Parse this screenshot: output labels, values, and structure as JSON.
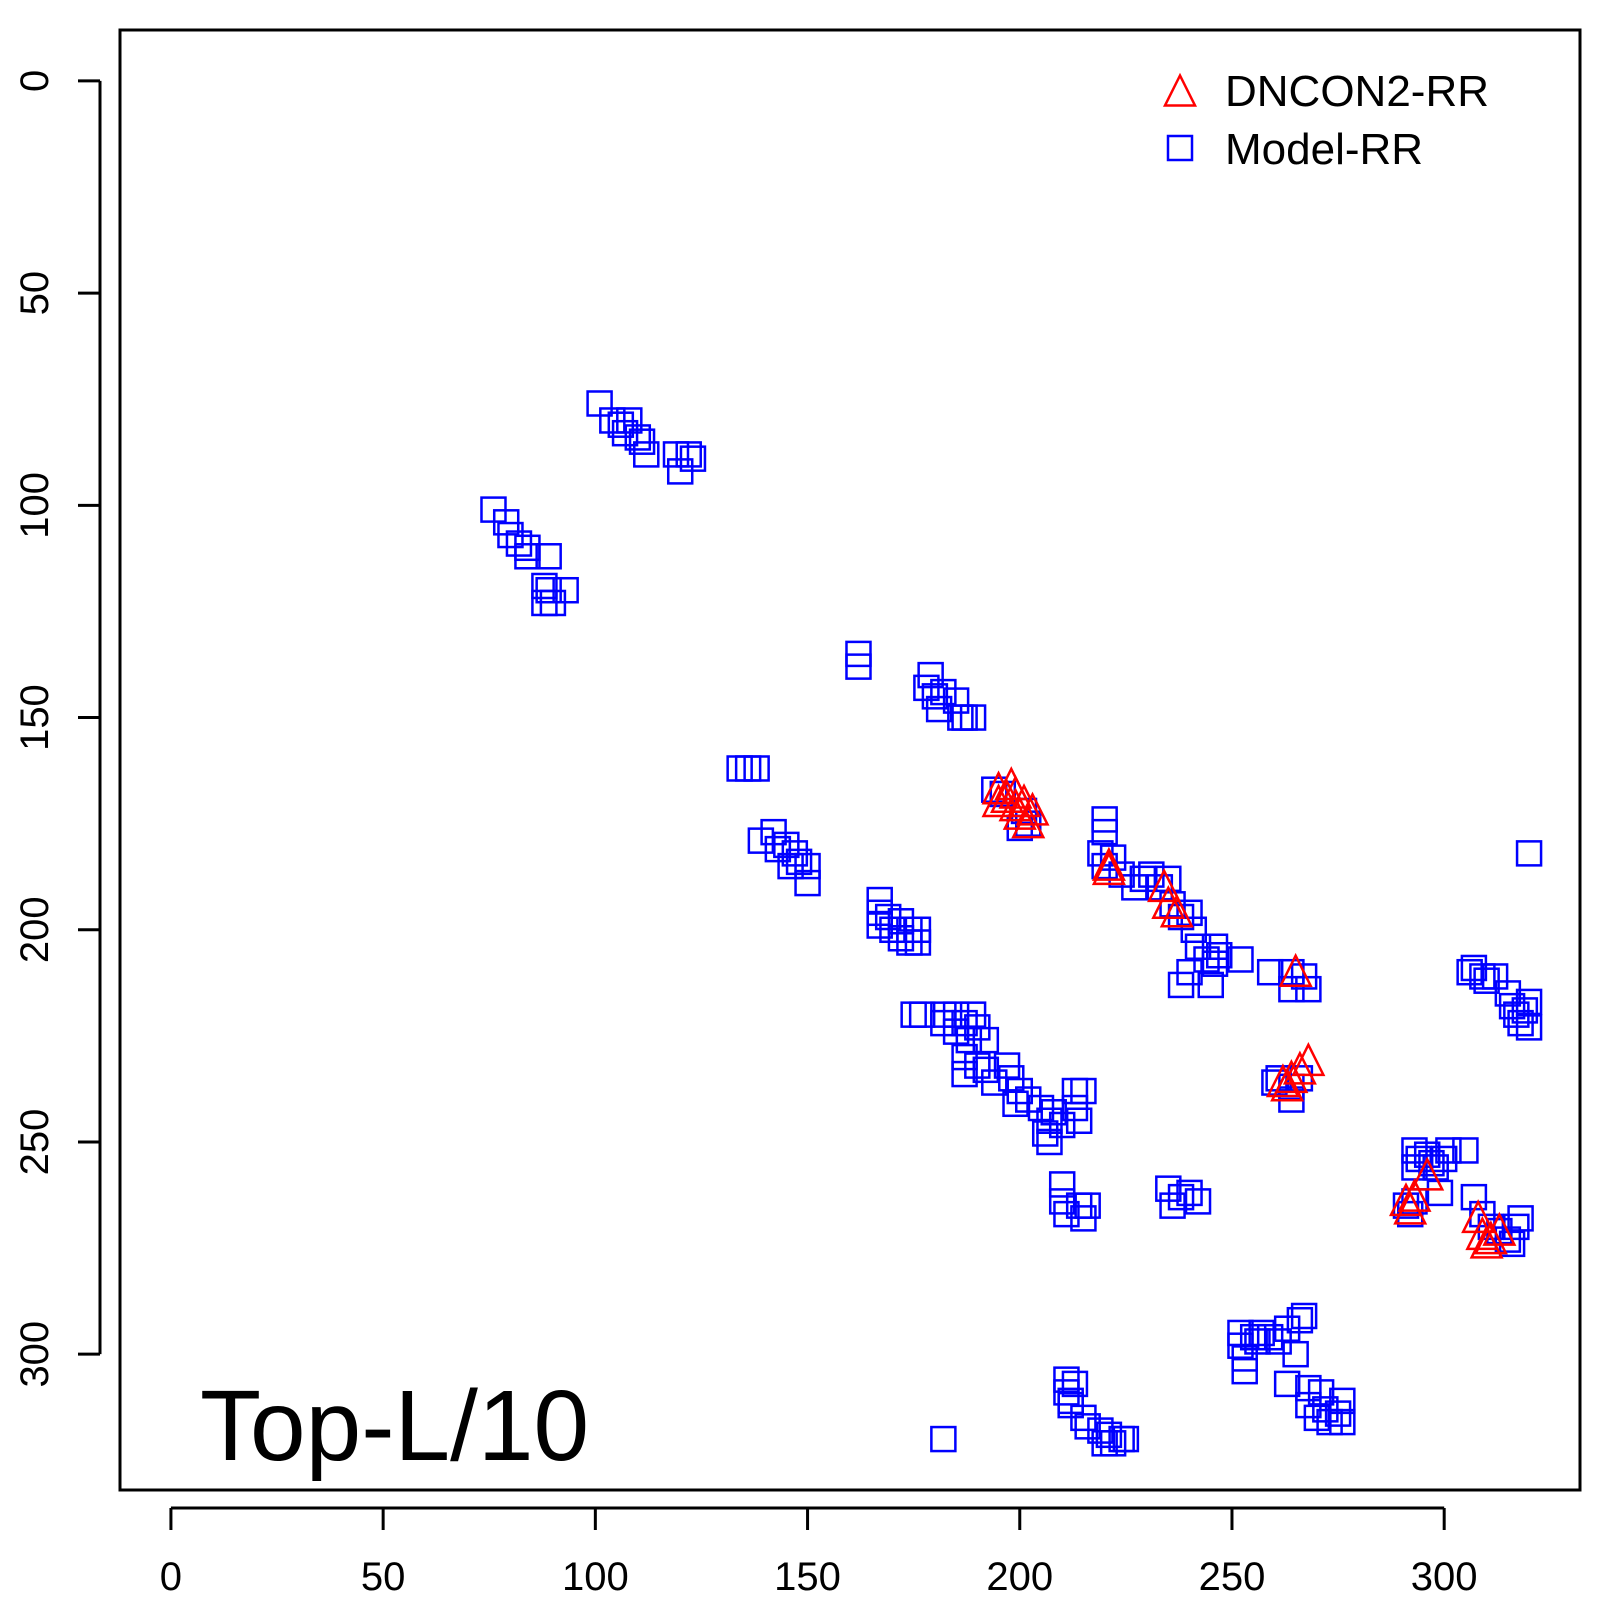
{
  "chart_data": {
    "type": "scatter",
    "annotation": "Top-L/10",
    "xlim": [
      -12,
      332
    ],
    "ylim": [
      -12,
      332
    ],
    "y_axis_reversed": true,
    "x_ticks": [
      0,
      50,
      100,
      150,
      200,
      250,
      300
    ],
    "y_ticks": [
      0,
      50,
      100,
      150,
      200,
      250,
      300
    ],
    "legend": {
      "placement": "top-right"
    },
    "series": [
      {
        "name": "DNCON2-RR",
        "marker": "triangle",
        "color": "#ff0000",
        "points": [
          [
            195,
            167
          ],
          [
            197,
            169
          ],
          [
            198,
            166
          ],
          [
            199,
            171
          ],
          [
            200,
            173
          ],
          [
            201,
            170
          ],
          [
            203,
            172
          ],
          [
            195,
            170
          ],
          [
            199,
            168
          ],
          [
            202,
            175
          ],
          [
            221,
            185
          ],
          [
            221,
            186
          ],
          [
            234,
            190
          ],
          [
            235,
            194
          ],
          [
            237,
            196
          ],
          [
            265,
            210
          ],
          [
            262,
            236
          ],
          [
            264,
            235
          ],
          [
            266,
            233
          ],
          [
            268,
            231
          ],
          [
            263,
            237
          ],
          [
            292,
            266
          ],
          [
            293,
            263
          ],
          [
            296,
            258
          ],
          [
            291,
            264
          ],
          [
            308,
            268
          ],
          [
            309,
            272
          ],
          [
            311,
            273
          ],
          [
            313,
            271
          ],
          [
            310,
            274
          ]
        ]
      },
      {
        "name": "Model-RR",
        "marker": "square",
        "color": "#0000ff",
        "points": [
          [
            101,
            76
          ],
          [
            104,
            80
          ],
          [
            106,
            81
          ],
          [
            108,
            80
          ],
          [
            107,
            83
          ],
          [
            110,
            84
          ],
          [
            111,
            85
          ],
          [
            112,
            88
          ],
          [
            119,
            88
          ],
          [
            120,
            92
          ],
          [
            123,
            89
          ],
          [
            122,
            88
          ],
          [
            76,
            101
          ],
          [
            79,
            104
          ],
          [
            80,
            107
          ],
          [
            82,
            109
          ],
          [
            84,
            110
          ],
          [
            84,
            112
          ],
          [
            89,
            112
          ],
          [
            88,
            119
          ],
          [
            88,
            123
          ],
          [
            90,
            123
          ],
          [
            93,
            120
          ],
          [
            89,
            120
          ],
          [
            162,
            135
          ],
          [
            162,
            138
          ],
          [
            179,
            140
          ],
          [
            178,
            143
          ],
          [
            180,
            145
          ],
          [
            181,
            148
          ],
          [
            182,
            144
          ],
          [
            185,
            146
          ],
          [
            186,
            150
          ],
          [
            187,
            150
          ],
          [
            189,
            150
          ],
          [
            134,
            162
          ],
          [
            136,
            162
          ],
          [
            138,
            162
          ],
          [
            139,
            179
          ],
          [
            142,
            177
          ],
          [
            143,
            181
          ],
          [
            145,
            180
          ],
          [
            147,
            182
          ],
          [
            146,
            185
          ],
          [
            148,
            184
          ],
          [
            150,
            185
          ],
          [
            150,
            189
          ],
          [
            167,
            193
          ],
          [
            167,
            196
          ],
          [
            167,
            199
          ],
          [
            169,
            197
          ],
          [
            170,
            200
          ],
          [
            172,
            198
          ],
          [
            172,
            202
          ],
          [
            174,
            200
          ],
          [
            174,
            203
          ],
          [
            176,
            200
          ],
          [
            176,
            203
          ],
          [
            175,
            220
          ],
          [
            177,
            220
          ],
          [
            182,
            220
          ],
          [
            182,
            222
          ],
          [
            185,
            220
          ],
          [
            185,
            224
          ],
          [
            187,
            222
          ],
          [
            188,
            226
          ],
          [
            189,
            220
          ],
          [
            190,
            223
          ],
          [
            187,
            230
          ],
          [
            187,
            234
          ],
          [
            190,
            232
          ],
          [
            192,
            226
          ],
          [
            192,
            233
          ],
          [
            194,
            236
          ],
          [
            197,
            232
          ],
          [
            198,
            235
          ],
          [
            200,
            238
          ],
          [
            199,
            241
          ],
          [
            202,
            240
          ],
          [
            205,
            242
          ],
          [
            207,
            245
          ],
          [
            206,
            248
          ],
          [
            208,
            243
          ],
          [
            210,
            246
          ],
          [
            213,
            242
          ],
          [
            214,
            245
          ],
          [
            213,
            238
          ],
          [
            215,
            238
          ],
          [
            207,
            250
          ],
          [
            194,
            167
          ],
          [
            196,
            168
          ],
          [
            201,
            172
          ],
          [
            202,
            175
          ],
          [
            200,
            176
          ],
          [
            220,
            174
          ],
          [
            220,
            177
          ],
          [
            219,
            182
          ],
          [
            220,
            185
          ],
          [
            222,
            183
          ],
          [
            224,
            187
          ],
          [
            227,
            190
          ],
          [
            229,
            188
          ],
          [
            231,
            187
          ],
          [
            233,
            190
          ],
          [
            235,
            188
          ],
          [
            236,
            194
          ],
          [
            238,
            197
          ],
          [
            240,
            196
          ],
          [
            241,
            200
          ],
          [
            242,
            204
          ],
          [
            244,
            207
          ],
          [
            246,
            204
          ],
          [
            246,
            208
          ],
          [
            247,
            206
          ],
          [
            252,
            207
          ],
          [
            238,
            213
          ],
          [
            240,
            210
          ],
          [
            245,
            213
          ],
          [
            259,
            210
          ],
          [
            264,
            210
          ],
          [
            264,
            214
          ],
          [
            267,
            211
          ],
          [
            268,
            214
          ],
          [
            260,
            236
          ],
          [
            261,
            235
          ],
          [
            264,
            237
          ],
          [
            264,
            240
          ],
          [
            266,
            235
          ],
          [
            210,
            260
          ],
          [
            210,
            264
          ],
          [
            211,
            267
          ],
          [
            214,
            265
          ],
          [
            215,
            268
          ],
          [
            216,
            265
          ],
          [
            235,
            261
          ],
          [
            236,
            265
          ],
          [
            238,
            263
          ],
          [
            240,
            262
          ],
          [
            242,
            264
          ],
          [
            306,
            210
          ],
          [
            307,
            209
          ],
          [
            309,
            211
          ],
          [
            310,
            212
          ],
          [
            312,
            211
          ],
          [
            315,
            215
          ],
          [
            316,
            218
          ],
          [
            317,
            220
          ],
          [
            318,
            222
          ],
          [
            319,
            219
          ],
          [
            320,
            223
          ],
          [
            320,
            217
          ],
          [
            320,
            182
          ],
          [
            293,
            252
          ],
          [
            293,
            256
          ],
          [
            294,
            254
          ],
          [
            296,
            253
          ],
          [
            297,
            255
          ],
          [
            298,
            256
          ],
          [
            300,
            254
          ],
          [
            301,
            252
          ],
          [
            305,
            252
          ],
          [
            299,
            262
          ],
          [
            291,
            265
          ],
          [
            292,
            267
          ],
          [
            293,
            264
          ],
          [
            307,
            263
          ],
          [
            309,
            267
          ],
          [
            311,
            270
          ],
          [
            313,
            271
          ],
          [
            315,
            273
          ],
          [
            316,
            274
          ],
          [
            317,
            270
          ],
          [
            318,
            268
          ],
          [
            252,
            295
          ],
          [
            252,
            298
          ],
          [
            253,
            301
          ],
          [
            253,
            304
          ],
          [
            255,
            296
          ],
          [
            256,
            297
          ],
          [
            257,
            295
          ],
          [
            259,
            296
          ],
          [
            261,
            297
          ],
          [
            263,
            294
          ],
          [
            266,
            292
          ],
          [
            267,
            291
          ],
          [
            265,
            300
          ],
          [
            263,
            307
          ],
          [
            268,
            308
          ],
          [
            268,
            312
          ],
          [
            270,
            315
          ],
          [
            272,
            313
          ],
          [
            273,
            316
          ],
          [
            275,
            314
          ],
          [
            276,
            311
          ],
          [
            276,
            316
          ],
          [
            271,
            309
          ],
          [
            211,
            306
          ],
          [
            211,
            309
          ],
          [
            212,
            312
          ],
          [
            213,
            307
          ],
          [
            212,
            311
          ],
          [
            215,
            315
          ],
          [
            216,
            317
          ],
          [
            219,
            318
          ],
          [
            220,
            321
          ],
          [
            221,
            319
          ],
          [
            222,
            321
          ],
          [
            224,
            320
          ],
          [
            225,
            320
          ],
          [
            182,
            320
          ]
        ]
      }
    ]
  }
}
